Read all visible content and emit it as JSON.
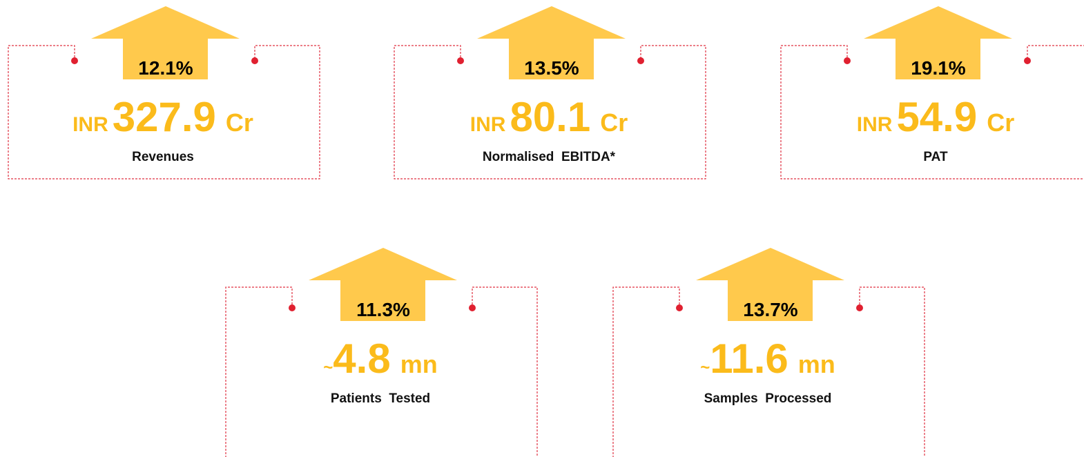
{
  "cards": [
    {
      "growth": "12.1%",
      "prefix": "INR",
      "value": 327.9,
      "unit": "Cr",
      "label": "Revenues"
    },
    {
      "growth": "13.5%",
      "prefix": "INR",
      "value": 80.1,
      "unit": "Cr",
      "label": "Normalised  EBITDA*"
    },
    {
      "growth": "19.1%",
      "prefix": "INR",
      "value": 54.9,
      "unit": "Cr",
      "label": "PAT"
    },
    {
      "growth": "11.3%",
      "prefix": "~",
      "value": 4.8,
      "unit": "mn",
      "label": "Patients  Tested"
    },
    {
      "growth": "13.7%",
      "prefix": "~",
      "value": 11.6,
      "unit": "mn",
      "label": "Samples  Processed"
    }
  ]
}
